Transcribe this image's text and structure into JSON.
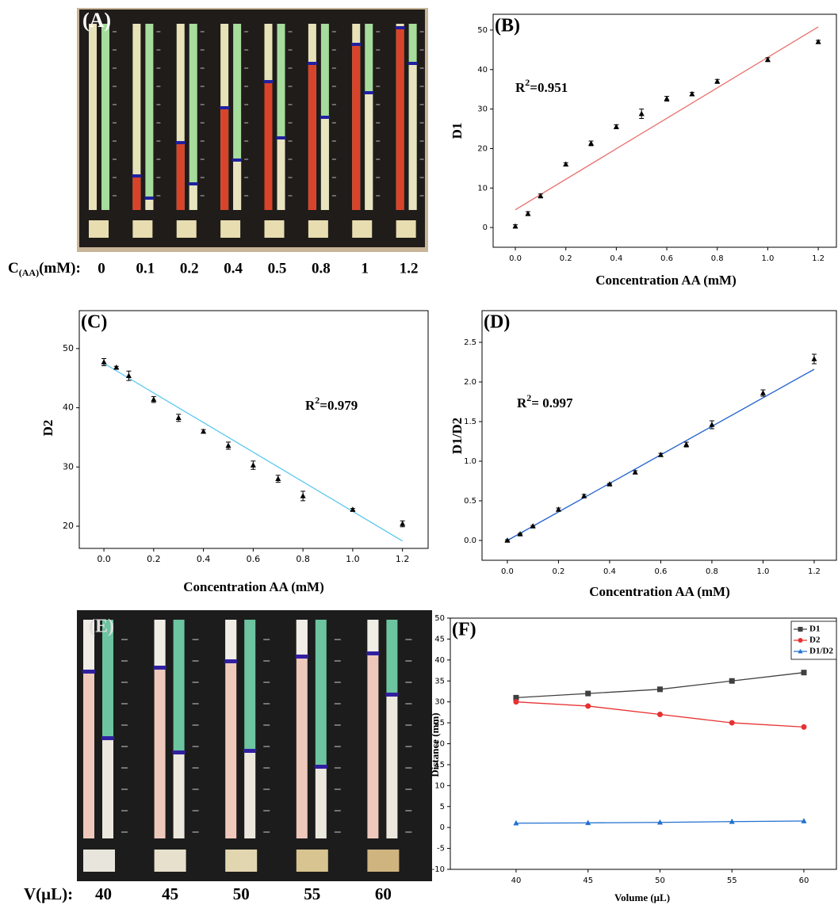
{
  "photo_panels": [
    {
      "panel_label": "(A)",
      "label_main": "C",
      "label_subscript": "(AA)",
      "label_unit": "(mM):",
      "labels": [
        "0",
        "0.1",
        "0.2",
        "0.4",
        "0.5",
        "0.8",
        "1",
        "1.2"
      ]
    },
    {
      "panel_label": "(E)",
      "label_main": "V(μL):",
      "labels": [
        "40",
        "45",
        "50",
        "55",
        "60"
      ]
    }
  ],
  "chart_data": [
    {
      "type": "scatter",
      "panel_label": "(B)",
      "x_label": "Concentration AA (mM)",
      "y_label": "D1",
      "x": [
        0,
        0.05,
        0.1,
        0.2,
        0.3,
        0.4,
        0.5,
        0.6,
        0.7,
        0.8,
        1.0,
        1.2
      ],
      "series": [
        {
          "color": "#000000",
          "values": [
            0.3,
            3.5,
            8,
            16,
            21.3,
            25.5,
            28.8,
            32.6,
            33.8,
            37,
            42.5,
            47
          ],
          "errors": [
            0.4,
            0.5,
            0.5,
            0.4,
            0.6,
            0.5,
            1.2,
            0.6,
            0.4,
            0.5,
            0.5,
            0.4
          ]
        }
      ],
      "fit": {
        "color": "#e8706e",
        "x": [
          0,
          1.2
        ],
        "y": [
          4.5,
          50.8
        ]
      },
      "annotation": {
        "base": "R",
        "superscript": "2",
        "rest": "=0.951"
      },
      "xlim": [
        -0.088,
        1.272
      ],
      "ylim": [
        -5,
        54
      ],
      "xticks": [
        {
          "value": 0,
          "label": "0.0"
        },
        {
          "value": 0.2,
          "label": "0.2"
        },
        {
          "value": 0.4,
          "label": "0.4"
        },
        {
          "value": 0.6,
          "label": "0.6"
        },
        {
          "value": 0.8,
          "label": "0.8"
        },
        {
          "value": 1,
          "label": "1.0"
        },
        {
          "value": 1.2,
          "label": "1.2"
        }
      ],
      "yticks": [
        0,
        10,
        20,
        30,
        40,
        50
      ]
    },
    {
      "type": "scatter",
      "panel_label": "(C)",
      "x_label": "Concentration AA (mM)",
      "y_label": "D2",
      "x": [
        0,
        0.05,
        0.1,
        0.2,
        0.3,
        0.4,
        0.5,
        0.6,
        0.7,
        0.8,
        1.0,
        1.2
      ],
      "series": [
        {
          "color": "#000000",
          "values": [
            47.7,
            46.8,
            45.4,
            41.4,
            38.3,
            36,
            33.6,
            30.3,
            28,
            25.1,
            22.8,
            20.4
          ],
          "errors": [
            0.6,
            0.2,
            0.8,
            0.5,
            0.6,
            0.3,
            0.6,
            0.7,
            0.6,
            0.8,
            0.2,
            0.5
          ]
        }
      ],
      "fit": {
        "color": "#5bc8f0",
        "x": [
          0,
          1.2
        ],
        "y": [
          47.5,
          17.5
        ]
      },
      "annotation": {
        "base": "R",
        "superscript": "2",
        "rest": "=0.979"
      },
      "xlim": [
        -0.099,
        1.303
      ],
      "ylim": [
        16.25,
        56.4
      ],
      "xticks": [
        {
          "value": 0,
          "label": "0.0"
        },
        {
          "value": 0.2,
          "label": "0.2"
        },
        {
          "value": 0.4,
          "label": "0.4"
        },
        {
          "value": 0.6,
          "label": "0.6"
        },
        {
          "value": 0.8,
          "label": "0.8"
        },
        {
          "value": 1,
          "label": "1.0"
        },
        {
          "value": 1.2,
          "label": "1.2"
        }
      ],
      "yticks": [
        20,
        30,
        40,
        50
      ]
    },
    {
      "type": "scatter",
      "panel_label": "(D)",
      "x_label": "Concentration AA (mM)",
      "y_label": "D1/D2",
      "x": [
        0,
        0.05,
        0.1,
        0.2,
        0.3,
        0.4,
        0.5,
        0.6,
        0.7,
        0.8,
        1.0,
        1.2
      ],
      "series": [
        {
          "color": "#000000",
          "values": [
            0,
            0.08,
            0.18,
            0.39,
            0.56,
            0.71,
            0.86,
            1.08,
            1.21,
            1.46,
            1.86,
            2.29
          ],
          "errors": [
            0.01,
            0.01,
            0.01,
            0.02,
            0.02,
            0.01,
            0.02,
            0.02,
            0.03,
            0.05,
            0.04,
            0.06
          ]
        }
      ],
      "fit": {
        "color": "#2060d0",
        "x": [
          0,
          1.2
        ],
        "y": [
          0,
          2.16
        ]
      },
      "annotation": {
        "base": "R",
        "superscript": "2",
        "rest": "= 0.997"
      },
      "xlim": [
        -0.099,
        1.287
      ],
      "ylim": [
        -0.25,
        2.9
      ],
      "xticks": [
        {
          "value": 0,
          "label": "0.0"
        },
        {
          "value": 0.2,
          "label": "0.2"
        },
        {
          "value": 0.4,
          "label": "0.4"
        },
        {
          "value": 0.6,
          "label": "0.6"
        },
        {
          "value": 0.8,
          "label": "0.8"
        },
        {
          "value": 1,
          "label": "1.0"
        },
        {
          "value": 1.2,
          "label": "1.2"
        }
      ],
      "yticks": [
        {
          "value": 0,
          "label": "0.0"
        },
        0.5,
        {
          "value": 1,
          "label": "1.0"
        },
        1.5,
        {
          "value": 2,
          "label": "2.0"
        },
        2.5
      ]
    },
    {
      "type": "line",
      "panel_label": "(F)",
      "x_label": "Volume (μL)",
      "y_label": "Distance (mm)",
      "x": [
        40,
        45,
        50,
        55,
        60
      ],
      "series": [
        {
          "name": "D1",
          "color": "#404040",
          "marker": "square",
          "values": [
            31,
            32,
            33,
            35,
            37
          ]
        },
        {
          "name": "D2",
          "color": "#e83030",
          "marker": "circle",
          "values": [
            30,
            29,
            27,
            25,
            24
          ]
        },
        {
          "name": "D1/D2",
          "color": "#2070d0",
          "marker": "triangle",
          "values": [
            1.03,
            1.1,
            1.22,
            1.4,
            1.54
          ]
        }
      ],
      "legend": "upper right",
      "xlim": [
        35.43,
        62.26
      ],
      "ylim": [
        -10,
        50
      ],
      "xticks": [
        40,
        45,
        50,
        55,
        60
      ],
      "yticks": [
        -10,
        -5,
        0,
        5,
        10,
        15,
        20,
        25,
        30,
        35,
        40,
        45,
        50
      ]
    }
  ]
}
